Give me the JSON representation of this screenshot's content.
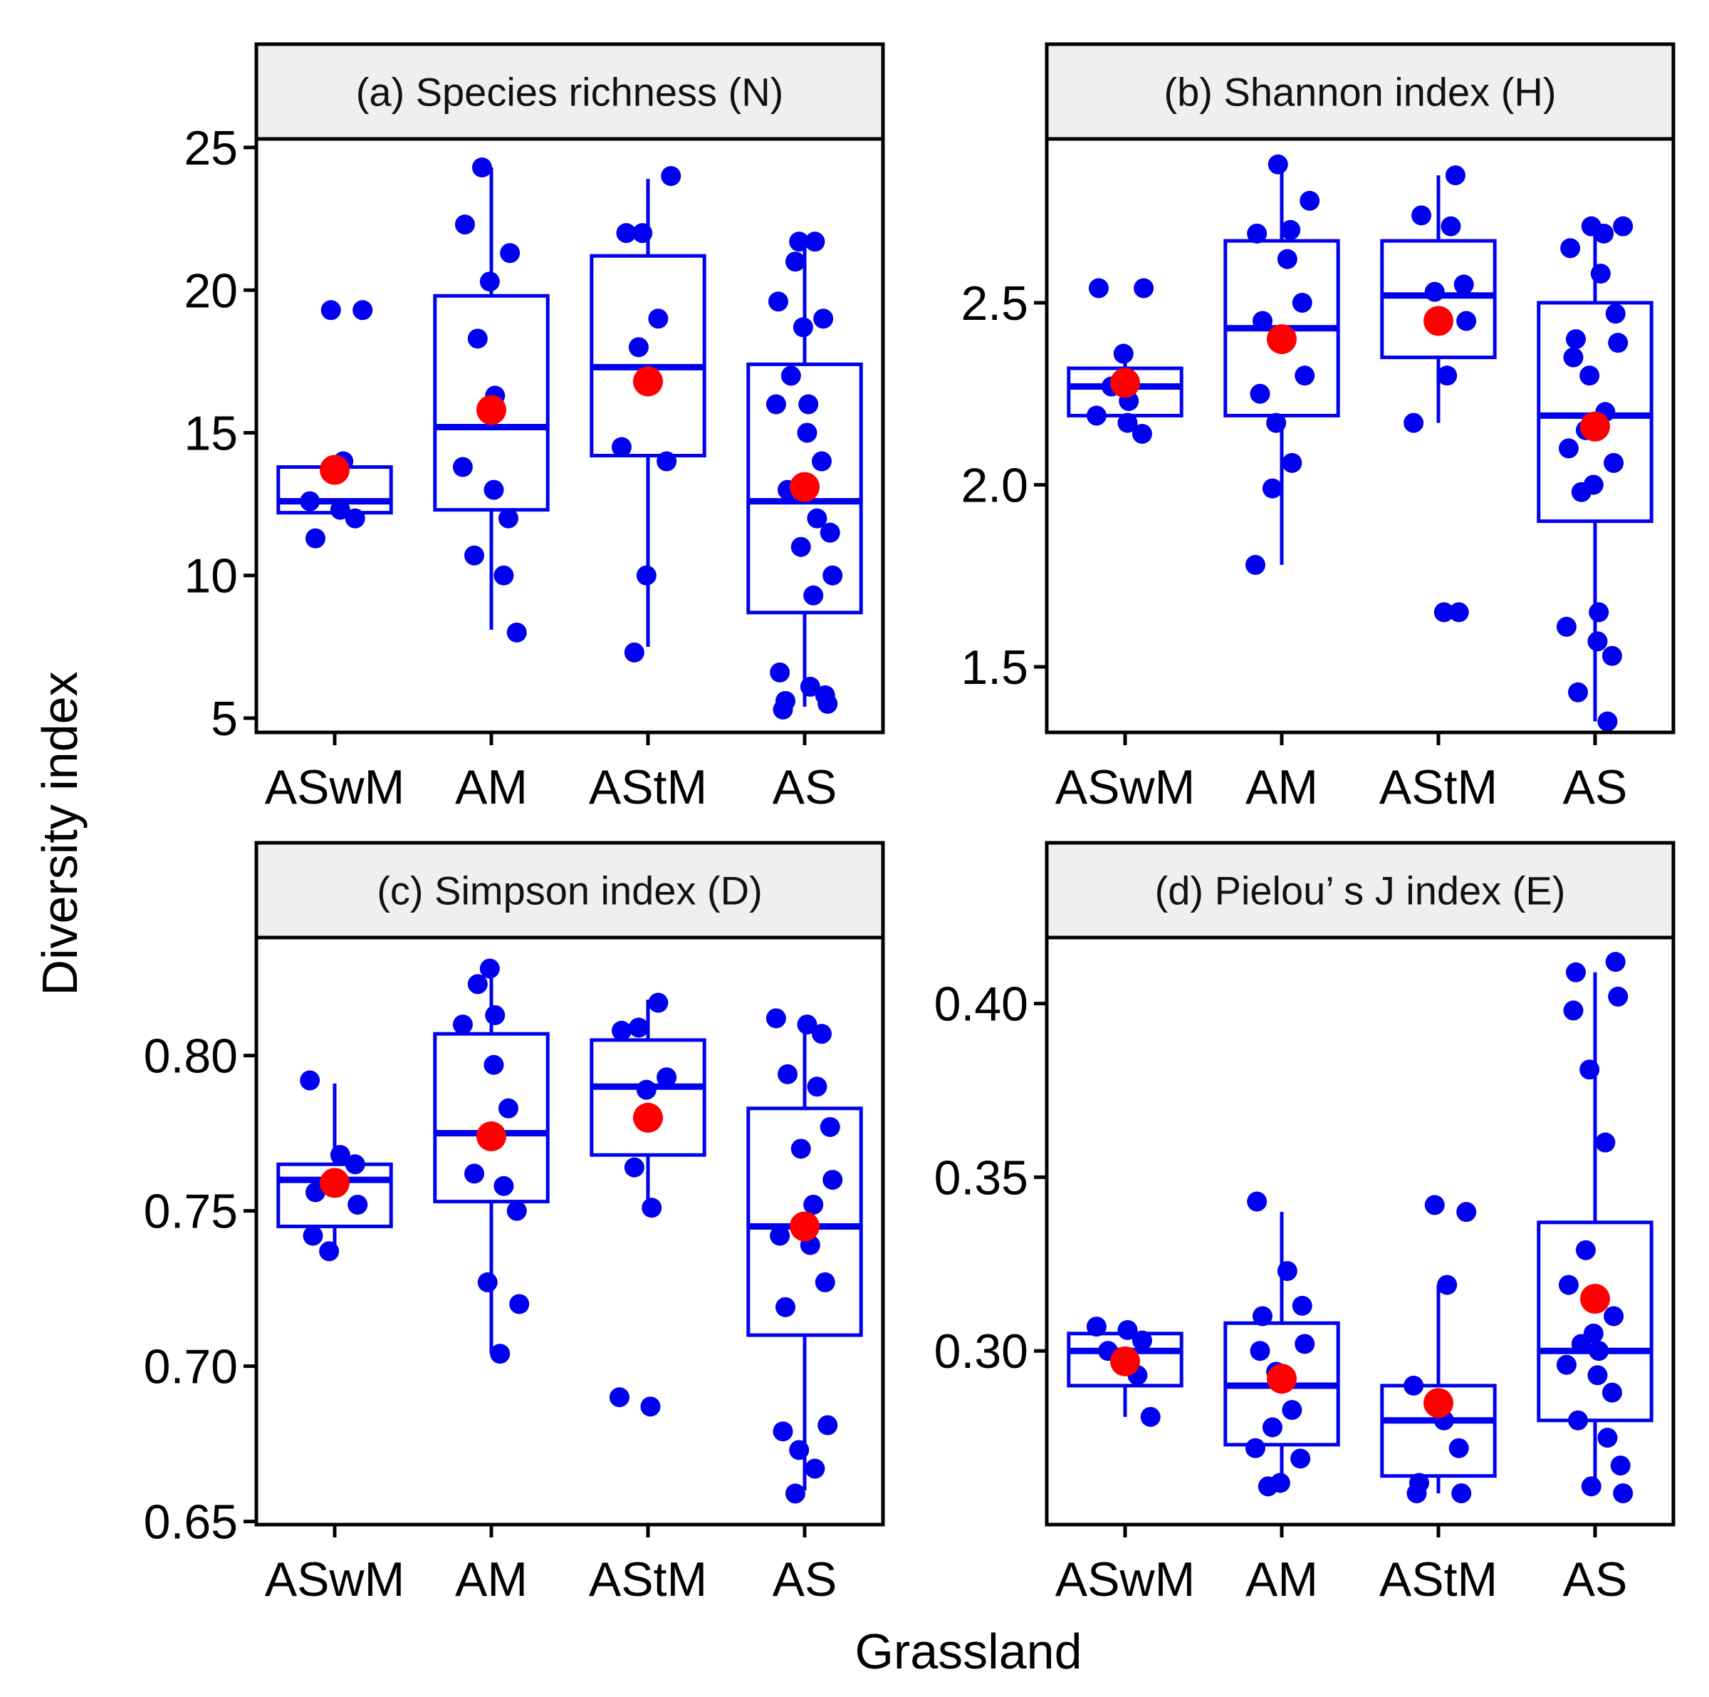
{
  "chart_data": {
    "type": "box",
    "xlabel": "Grassland",
    "ylabel": "Diversity index",
    "categories": [
      "ASwM",
      "AM",
      "AStM",
      "AS"
    ],
    "colors": {
      "box": "#0000ee",
      "points": "#0000ee",
      "mean": "#ff0000",
      "strip": "#efefef"
    },
    "panels": [
      {
        "title": "(a) Species richness (N)",
        "ylim": [
          4.5,
          25.3
        ],
        "yticks": [
          5,
          10,
          15,
          20,
          25
        ],
        "tick_labels": [
          "5",
          "10",
          "15",
          "20",
          "25"
        ],
        "groups": [
          {
            "name": "ASwM",
            "q1": 12.2,
            "median": 12.6,
            "q3": 13.8,
            "whisker_low": 12.2,
            "whisker_high": 13.8,
            "mean": 13.7,
            "points": [
              11.3,
              12.0,
              12.3,
              12.6,
              14.0,
              19.3,
              19.3
            ]
          },
          {
            "name": "AM",
            "q1": 12.3,
            "median": 15.2,
            "q3": 19.8,
            "whisker_low": 8.1,
            "whisker_high": 24.3,
            "mean": 15.8,
            "points": [
              8.0,
              10.0,
              10.7,
              12.0,
              13.0,
              13.8,
              16.3,
              18.3,
              20.3,
              21.3,
              22.3,
              24.3
            ]
          },
          {
            "name": "AStM",
            "q1": 14.2,
            "median": 17.3,
            "q3": 21.2,
            "whisker_low": 7.5,
            "whisker_high": 23.9,
            "mean": 16.8,
            "points": [
              7.3,
              10.0,
              14.0,
              14.5,
              18.0,
              19.0,
              22.0,
              22.0,
              24.0
            ]
          },
          {
            "name": "AS",
            "q1": 8.7,
            "median": 12.6,
            "q3": 17.4,
            "whisker_low": 5.4,
            "whisker_high": 21.6,
            "mean": 13.1,
            "points": [
              5.3,
              5.5,
              5.6,
              5.8,
              6.1,
              6.6,
              9.3,
              10.0,
              11.0,
              11.5,
              12.0,
              13.0,
              14.0,
              15.0,
              16.0,
              16.0,
              17.0,
              18.7,
              19.0,
              19.6,
              21.0,
              21.7,
              21.7
            ]
          }
        ]
      },
      {
        "title": "(b) Shannon index (H)",
        "ylim": [
          1.32,
          2.95
        ],
        "yticks": [
          1.5,
          2.0,
          2.5
        ],
        "tick_labels": [
          "1.5",
          "2.0",
          "2.5"
        ],
        "groups": [
          {
            "name": "ASwM",
            "q1": 2.19,
            "median": 2.27,
            "q3": 2.32,
            "whisker_low": 2.19,
            "whisker_high": 2.36,
            "mean": 2.28,
            "points": [
              2.14,
              2.17,
              2.19,
              2.23,
              2.27,
              2.36,
              2.54,
              2.54
            ]
          },
          {
            "name": "AM",
            "q1": 2.19,
            "median": 2.43,
            "q3": 2.67,
            "whisker_low": 1.78,
            "whisker_high": 2.88,
            "mean": 2.4,
            "points": [
              1.78,
              1.99,
              2.06,
              2.17,
              2.25,
              2.3,
              2.45,
              2.5,
              2.62,
              2.69,
              2.7,
              2.78,
              2.88
            ]
          },
          {
            "name": "AStM",
            "q1": 2.35,
            "median": 2.52,
            "q3": 2.67,
            "whisker_low": 2.17,
            "whisker_high": 2.85,
            "mean": 2.45,
            "points": [
              1.65,
              1.65,
              2.17,
              2.3,
              2.45,
              2.53,
              2.55,
              2.71,
              2.74,
              2.85
            ]
          },
          {
            "name": "AS",
            "q1": 1.9,
            "median": 2.19,
            "q3": 2.5,
            "whisker_low": 1.35,
            "whisker_high": 2.71,
            "mean": 2.16,
            "points": [
              1.35,
              1.43,
              1.53,
              1.57,
              1.61,
              1.65,
              1.98,
              2.0,
              2.06,
              2.1,
              2.15,
              2.2,
              2.3,
              2.35,
              2.39,
              2.4,
              2.47,
              2.58,
              2.65,
              2.69,
              2.71,
              2.71
            ]
          }
        ]
      },
      {
        "title": "(c) Simpson index (D)",
        "ylim": [
          0.649,
          0.838
        ],
        "yticks": [
          0.65,
          0.7,
          0.75,
          0.8
        ],
        "tick_labels": [
          "0.65",
          "0.70",
          "0.75",
          "0.80"
        ],
        "groups": [
          {
            "name": "ASwM",
            "q1": 0.745,
            "median": 0.76,
            "q3": 0.765,
            "whisker_low": 0.737,
            "whisker_high": 0.791,
            "mean": 0.759,
            "points": [
              0.737,
              0.742,
              0.752,
              0.756,
              0.765,
              0.768,
              0.792
            ]
          },
          {
            "name": "AM",
            "q1": 0.753,
            "median": 0.775,
            "q3": 0.807,
            "whisker_low": 0.704,
            "whisker_high": 0.828,
            "mean": 0.774,
            "points": [
              0.704,
              0.72,
              0.727,
              0.75,
              0.758,
              0.762,
              0.783,
              0.797,
              0.81,
              0.813,
              0.823,
              0.828
            ]
          },
          {
            "name": "AStM",
            "q1": 0.768,
            "median": 0.79,
            "q3": 0.805,
            "whisker_low": 0.75,
            "whisker_high": 0.818,
            "mean": 0.78,
            "points": [
              0.687,
              0.69,
              0.751,
              0.764,
              0.789,
              0.793,
              0.808,
              0.809,
              0.817
            ]
          },
          {
            "name": "AS",
            "q1": 0.71,
            "median": 0.745,
            "q3": 0.783,
            "whisker_low": 0.66,
            "whisker_high": 0.812,
            "mean": 0.745,
            "points": [
              0.659,
              0.667,
              0.673,
              0.679,
              0.681,
              0.719,
              0.727,
              0.739,
              0.742,
              0.752,
              0.76,
              0.77,
              0.777,
              0.79,
              0.794,
              0.807,
              0.81,
              0.812
            ]
          }
        ]
      },
      {
        "title": "(d) Pielou’ s J index (E)",
        "ylim": [
          0.25,
          0.419
        ],
        "yticks": [
          0.3,
          0.35,
          0.4
        ],
        "tick_labels": [
          "0.30",
          "0.35",
          "0.40"
        ],
        "groups": [
          {
            "name": "ASwM",
            "q1": 0.29,
            "median": 0.3,
            "q3": 0.305,
            "whisker_low": 0.281,
            "whisker_high": 0.307,
            "mean": 0.297,
            "points": [
              0.281,
              0.293,
              0.3,
              0.303,
              0.306,
              0.307
            ]
          },
          {
            "name": "AM",
            "q1": 0.273,
            "median": 0.29,
            "q3": 0.308,
            "whisker_low": 0.262,
            "whisker_high": 0.34,
            "mean": 0.292,
            "points": [
              0.261,
              0.262,
              0.269,
              0.272,
              0.278,
              0.283,
              0.294,
              0.3,
              0.302,
              0.31,
              0.313,
              0.323,
              0.343
            ]
          },
          {
            "name": "AStM",
            "q1": 0.264,
            "median": 0.28,
            "q3": 0.29,
            "whisker_low": 0.259,
            "whisker_high": 0.319,
            "mean": 0.285,
            "points": [
              0.259,
              0.259,
              0.262,
              0.272,
              0.28,
              0.29,
              0.319,
              0.34,
              0.342
            ]
          },
          {
            "name": "AS",
            "q1": 0.28,
            "median": 0.3,
            "q3": 0.337,
            "whisker_low": 0.261,
            "whisker_high": 0.409,
            "mean": 0.315,
            "points": [
              0.259,
              0.261,
              0.267,
              0.275,
              0.28,
              0.288,
              0.293,
              0.296,
              0.3,
              0.302,
              0.305,
              0.31,
              0.319,
              0.329,
              0.36,
              0.381,
              0.398,
              0.402,
              0.409,
              0.412
            ]
          }
        ]
      }
    ]
  }
}
